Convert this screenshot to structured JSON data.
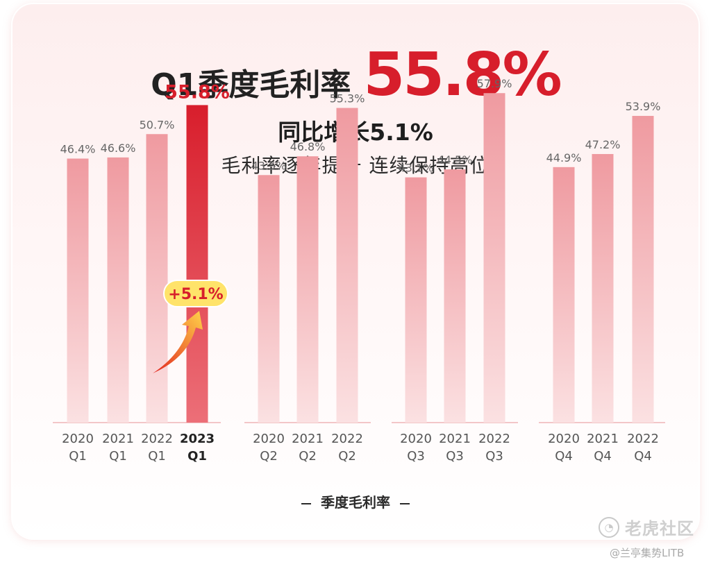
{
  "headline": {
    "prefix": "Q1季度毛利率",
    "value": "55.8%"
  },
  "subtitle": "同比增长5.1%",
  "tagline": "毛利率逐年提升 连续保持高位",
  "callout": "+5.1%",
  "legend_label": "季度毛利率",
  "watermark": {
    "name": "老虎社区",
    "credit": "@兰亭集势LITB"
  },
  "colors": {
    "accent": "#d71e2b",
    "bar": "#f0a8ac",
    "callout_bg": "#ffe36a"
  },
  "chart_data": {
    "type": "bar",
    "title": "Q1季度毛利率",
    "groups": [
      {
        "quarter": "Q1",
        "categories": [
          "2020",
          "2021",
          "2022",
          "2023"
        ],
        "values": [
          46.4,
          46.6,
          50.7,
          55.8
        ],
        "labels": [
          "46.4%",
          "46.6%",
          "50.7%",
          "55.8%"
        ],
        "highlight_index": 3
      },
      {
        "quarter": "Q2",
        "categories": [
          "2020",
          "2021",
          "2022"
        ],
        "values": [
          43.5,
          46.8,
          55.3
        ],
        "labels": [
          "43.5%",
          "46.8%",
          "55.3%"
        ]
      },
      {
        "quarter": "Q3",
        "categories": [
          "2020",
          "2021",
          "2022"
        ],
        "values": [
          43.1,
          44.5,
          57.9
        ],
        "labels": [
          "43.1%",
          "44.5%",
          "57.9%"
        ]
      },
      {
        "quarter": "Q4",
        "categories": [
          "2020",
          "2021",
          "2022"
        ],
        "values": [
          44.9,
          47.2,
          53.9
        ],
        "labels": [
          "44.9%",
          "47.2%",
          "53.9%"
        ]
      }
    ],
    "ylabel": "",
    "grid": false,
    "legend": "bottom-center"
  }
}
